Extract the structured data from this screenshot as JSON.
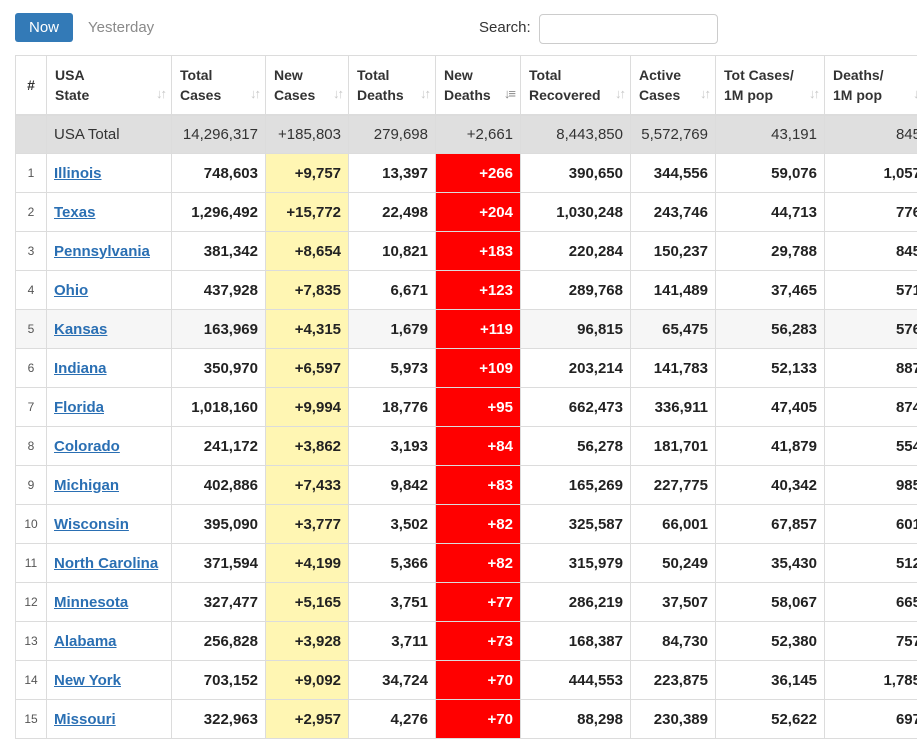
{
  "toolbar": {
    "now_label": "Now",
    "yesterday_label": "Yesterday",
    "search_label": "Search:",
    "search_value": ""
  },
  "colors": {
    "now_button": "#337ab7",
    "new_cases_highlight": "#fff6b3",
    "new_deaths_highlight": "#ff0000",
    "link": "#2a6fb3"
  },
  "columns": [
    {
      "label": "#",
      "sort_icon": "sort-icon"
    },
    {
      "label": "USA\nState",
      "sort_icon": "sort-icon"
    },
    {
      "label": "Total\nCases",
      "sort_icon": "sort-icon"
    },
    {
      "label": "New\nCases",
      "sort_icon": "sort-icon"
    },
    {
      "label": "Total\nDeaths",
      "sort_icon": "sort-icon"
    },
    {
      "label": "New\nDeaths",
      "sort_icon": "sort-desc-icon"
    },
    {
      "label": "Total\nRecovered",
      "sort_icon": "sort-icon"
    },
    {
      "label": "Active\nCases",
      "sort_icon": "sort-icon"
    },
    {
      "label": "Tot Cases/\n1M pop",
      "sort_icon": "sort-icon"
    },
    {
      "label": "Deaths/\n1M pop",
      "sort_icon": "sort-icon"
    }
  ],
  "total_row": {
    "num": "",
    "state": "USA Total",
    "total_cases": "14,296,317",
    "new_cases": "+185,803",
    "total_deaths": "279,698",
    "new_deaths": "+2,661",
    "total_recovered": "8,443,850",
    "active_cases": "5,572,769",
    "cases_per_1m": "43,191",
    "deaths_per_1m": "845"
  },
  "rows": [
    {
      "num": "1",
      "state": "Illinois",
      "total_cases": "748,603",
      "new_cases": "+9,757",
      "total_deaths": "13,397",
      "new_deaths": "+266",
      "total_recovered": "390,650",
      "active_cases": "344,556",
      "cases_per_1m": "59,076",
      "deaths_per_1m": "1,057"
    },
    {
      "num": "2",
      "state": "Texas",
      "total_cases": "1,296,492",
      "new_cases": "+15,772",
      "total_deaths": "22,498",
      "new_deaths": "+204",
      "total_recovered": "1,030,248",
      "active_cases": "243,746",
      "cases_per_1m": "44,713",
      "deaths_per_1m": "776"
    },
    {
      "num": "3",
      "state": "Pennsylvania",
      "total_cases": "381,342",
      "new_cases": "+8,654",
      "total_deaths": "10,821",
      "new_deaths": "+183",
      "total_recovered": "220,284",
      "active_cases": "150,237",
      "cases_per_1m": "29,788",
      "deaths_per_1m": "845"
    },
    {
      "num": "4",
      "state": "Ohio",
      "total_cases": "437,928",
      "new_cases": "+7,835",
      "total_deaths": "6,671",
      "new_deaths": "+123",
      "total_recovered": "289,768",
      "active_cases": "141,489",
      "cases_per_1m": "37,465",
      "deaths_per_1m": "571"
    },
    {
      "num": "5",
      "state": "Kansas",
      "total_cases": "163,969",
      "new_cases": "+4,315",
      "total_deaths": "1,679",
      "new_deaths": "+119",
      "total_recovered": "96,815",
      "active_cases": "65,475",
      "cases_per_1m": "56,283",
      "deaths_per_1m": "576"
    },
    {
      "num": "6",
      "state": "Indiana",
      "total_cases": "350,970",
      "new_cases": "+6,597",
      "total_deaths": "5,973",
      "new_deaths": "+109",
      "total_recovered": "203,214",
      "active_cases": "141,783",
      "cases_per_1m": "52,133",
      "deaths_per_1m": "887"
    },
    {
      "num": "7",
      "state": "Florida",
      "total_cases": "1,018,160",
      "new_cases": "+9,994",
      "total_deaths": "18,776",
      "new_deaths": "+95",
      "total_recovered": "662,473",
      "active_cases": "336,911",
      "cases_per_1m": "47,405",
      "deaths_per_1m": "874"
    },
    {
      "num": "8",
      "state": "Colorado",
      "total_cases": "241,172",
      "new_cases": "+3,862",
      "total_deaths": "3,193",
      "new_deaths": "+84",
      "total_recovered": "56,278",
      "active_cases": "181,701",
      "cases_per_1m": "41,879",
      "deaths_per_1m": "554"
    },
    {
      "num": "9",
      "state": "Michigan",
      "total_cases": "402,886",
      "new_cases": "+7,433",
      "total_deaths": "9,842",
      "new_deaths": "+83",
      "total_recovered": "165,269",
      "active_cases": "227,775",
      "cases_per_1m": "40,342",
      "deaths_per_1m": "985"
    },
    {
      "num": "10",
      "state": "Wisconsin",
      "total_cases": "395,090",
      "new_cases": "+3,777",
      "total_deaths": "3,502",
      "new_deaths": "+82",
      "total_recovered": "325,587",
      "active_cases": "66,001",
      "cases_per_1m": "67,857",
      "deaths_per_1m": "601"
    },
    {
      "num": "11",
      "state": "North Carolina",
      "total_cases": "371,594",
      "new_cases": "+4,199",
      "total_deaths": "5,366",
      "new_deaths": "+82",
      "total_recovered": "315,979",
      "active_cases": "50,249",
      "cases_per_1m": "35,430",
      "deaths_per_1m": "512"
    },
    {
      "num": "12",
      "state": "Minnesota",
      "total_cases": "327,477",
      "new_cases": "+5,165",
      "total_deaths": "3,751",
      "new_deaths": "+77",
      "total_recovered": "286,219",
      "active_cases": "37,507",
      "cases_per_1m": "58,067",
      "deaths_per_1m": "665"
    },
    {
      "num": "13",
      "state": "Alabama",
      "total_cases": "256,828",
      "new_cases": "+3,928",
      "total_deaths": "3,711",
      "new_deaths": "+73",
      "total_recovered": "168,387",
      "active_cases": "84,730",
      "cases_per_1m": "52,380",
      "deaths_per_1m": "757"
    },
    {
      "num": "14",
      "state": "New York",
      "total_cases": "703,152",
      "new_cases": "+9,092",
      "total_deaths": "34,724",
      "new_deaths": "+70",
      "total_recovered": "444,553",
      "active_cases": "223,875",
      "cases_per_1m": "36,145",
      "deaths_per_1m": "1,785"
    },
    {
      "num": "15",
      "state": "Missouri",
      "total_cases": "322,963",
      "new_cases": "+2,957",
      "total_deaths": "4,276",
      "new_deaths": "+70",
      "total_recovered": "88,298",
      "active_cases": "230,389",
      "cases_per_1m": "52,622",
      "deaths_per_1m": "697"
    }
  ]
}
